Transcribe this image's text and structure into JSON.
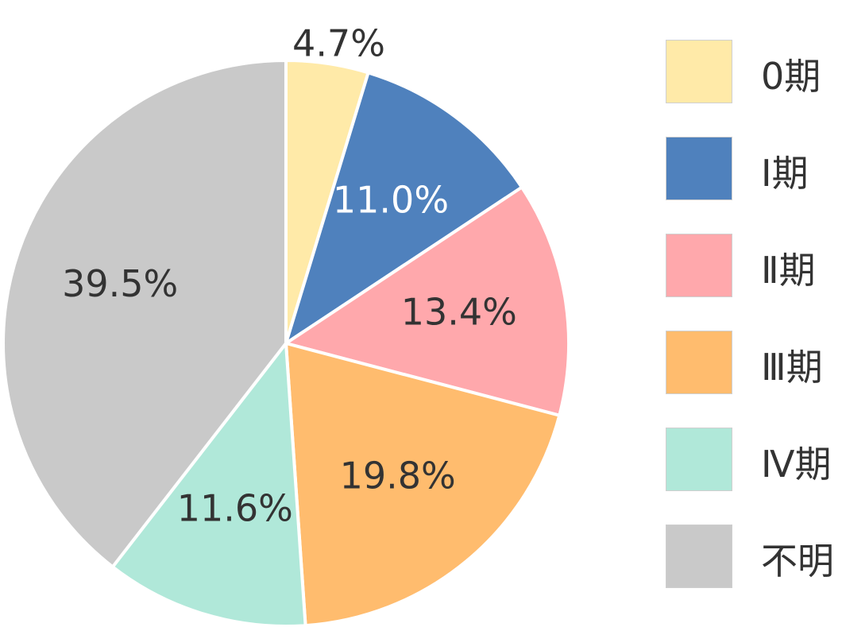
{
  "chart_data": {
    "type": "pie",
    "title": "",
    "slices": [
      {
        "label": "0期",
        "value": 4.7,
        "display": "4.7%",
        "color": "#FFEAA8",
        "label_color": "#333333"
      },
      {
        "label": "Ⅰ期",
        "value": 11.0,
        "display": "11.0%",
        "color": "#4F81BD",
        "label_color": "#FFFFFF"
      },
      {
        "label": "Ⅱ期",
        "value": 13.4,
        "display": "13.4%",
        "color": "#FFA8AC",
        "label_color": "#333333"
      },
      {
        "label": "Ⅲ期",
        "value": 19.8,
        "display": "19.8%",
        "color": "#FFBC6E",
        "label_color": "#333333"
      },
      {
        "label": "Ⅳ期",
        "value": 11.6,
        "display": "11.6%",
        "color": "#B0E8D9",
        "label_color": "#333333"
      },
      {
        "label": "不明",
        "value": 39.5,
        "display": "39.5%",
        "color": "#C9C9C9",
        "label_color": "#333333"
      }
    ],
    "start": "12 o'clock",
    "direction": "clockwise",
    "legend_position": "right"
  }
}
